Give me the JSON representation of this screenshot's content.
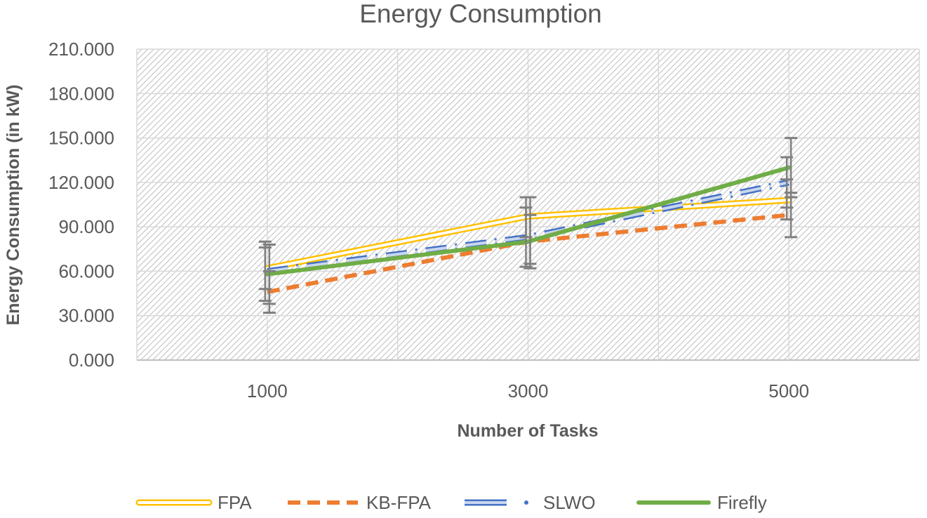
{
  "chart_data": {
    "type": "line",
    "title": "Energy Consumption",
    "xlabel": "Number of Tasks",
    "ylabel": "Energy Consumption (in kW)",
    "categories": [
      "1000",
      "3000",
      "5000"
    ],
    "ylim": [
      0,
      210
    ],
    "yticks": [
      "0.000",
      "30.000",
      "60.000",
      "90.000",
      "120.000",
      "150.000",
      "180.000",
      "210.000"
    ],
    "grid": true,
    "legend_position": "bottom",
    "series": [
      {
        "name": "FPA",
        "values": [
          62,
          97,
          108
        ],
        "color": "#FFC000",
        "style": "double",
        "error_low": [
          48,
          83,
          95
        ],
        "error_high": [
          76,
          110,
          122
        ]
      },
      {
        "name": "KB-FPA",
        "values": [
          46,
          80,
          98
        ],
        "color": "#ED7D31",
        "style": "dashed",
        "error_low": [
          32,
          62,
          83
        ],
        "error_high": [
          60,
          98,
          113
        ]
      },
      {
        "name": "SLWO",
        "values": [
          60,
          83,
          120
        ],
        "color": "#4472C4",
        "style": "dash-dot-double",
        "error_low": [
          40,
          63,
          103
        ],
        "error_high": [
          80,
          103,
          137
        ]
      },
      {
        "name": "Firefly",
        "values": [
          58,
          80,
          130
        ],
        "color": "#70AD47",
        "style": "solid",
        "error_low": [
          38,
          65,
          110
        ],
        "error_high": [
          78,
          110,
          150
        ]
      }
    ]
  }
}
